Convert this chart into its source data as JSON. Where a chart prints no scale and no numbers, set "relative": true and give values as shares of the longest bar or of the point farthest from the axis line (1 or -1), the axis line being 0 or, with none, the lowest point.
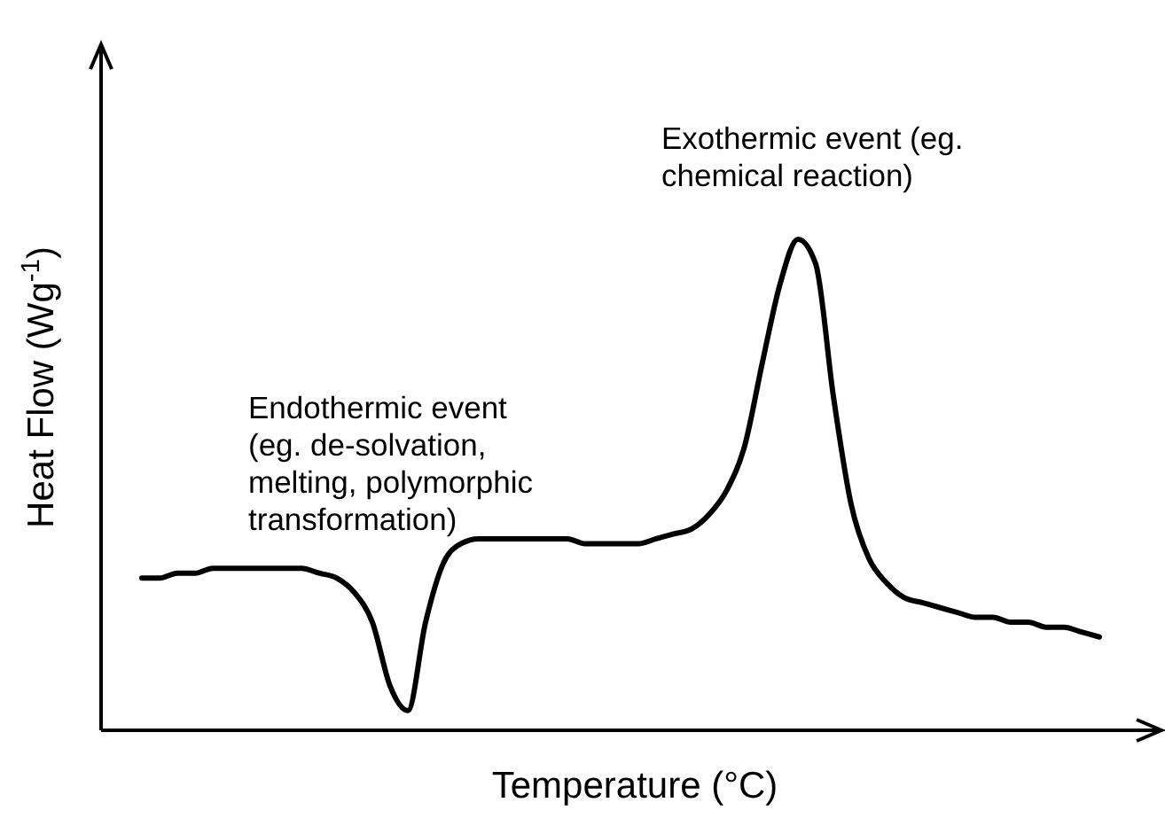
{
  "chart_data": {
    "type": "line",
    "relative": true,
    "xlabel": "Temperature (°C)",
    "ylabel": "Heat Flow (Wg$^{-1}$)",
    "annotations": [
      "Endothermic event\n(eg. de-solvation,\nmelting, polymorphic\ntransformation)",
      "Exothermic event (eg.\nchemical reaction)"
    ],
    "categories": [
      null,
      null,
      null,
      null,
      null,
      null,
      null,
      null,
      null,
      null,
      null,
      null,
      null,
      null,
      null,
      null,
      null,
      null,
      null,
      null,
      null,
      null,
      null,
      null,
      null,
      null,
      null,
      null,
      null,
      null,
      null,
      null,
      null,
      null,
      null,
      null,
      null,
      null,
      null,
      null,
      null,
      null,
      null,
      null,
      null,
      null,
      null,
      null,
      null,
      null,
      null,
      null,
      null,
      null,
      null
    ],
    "series": [
      {
        "color": "#000000",
        "values": [
          0.31,
          0.31,
          0.32,
          0.32,
          0.33,
          0.33,
          0.33,
          0.33,
          0.33,
          0.33,
          0.32,
          0.31,
          0.28,
          0.22,
          0.09,
          0.04,
          0.22,
          0.34,
          0.38,
          0.39,
          0.39,
          0.39,
          0.39,
          0.39,
          0.39,
          0.38,
          0.38,
          0.38,
          0.38,
          0.39,
          0.4,
          0.41,
          0.44,
          0.49,
          0.58,
          0.75,
          0.91,
          1,
          0.95,
          0.68,
          0.46,
          0.35,
          0.3,
          0.27,
          0.26,
          0.25,
          0.24,
          0.23,
          0.23,
          0.22,
          0.22,
          0.21,
          0.21,
          0.2,
          0.19
        ]
      }
    ],
    "marker": "none",
    "line_style": "solid"
  }
}
